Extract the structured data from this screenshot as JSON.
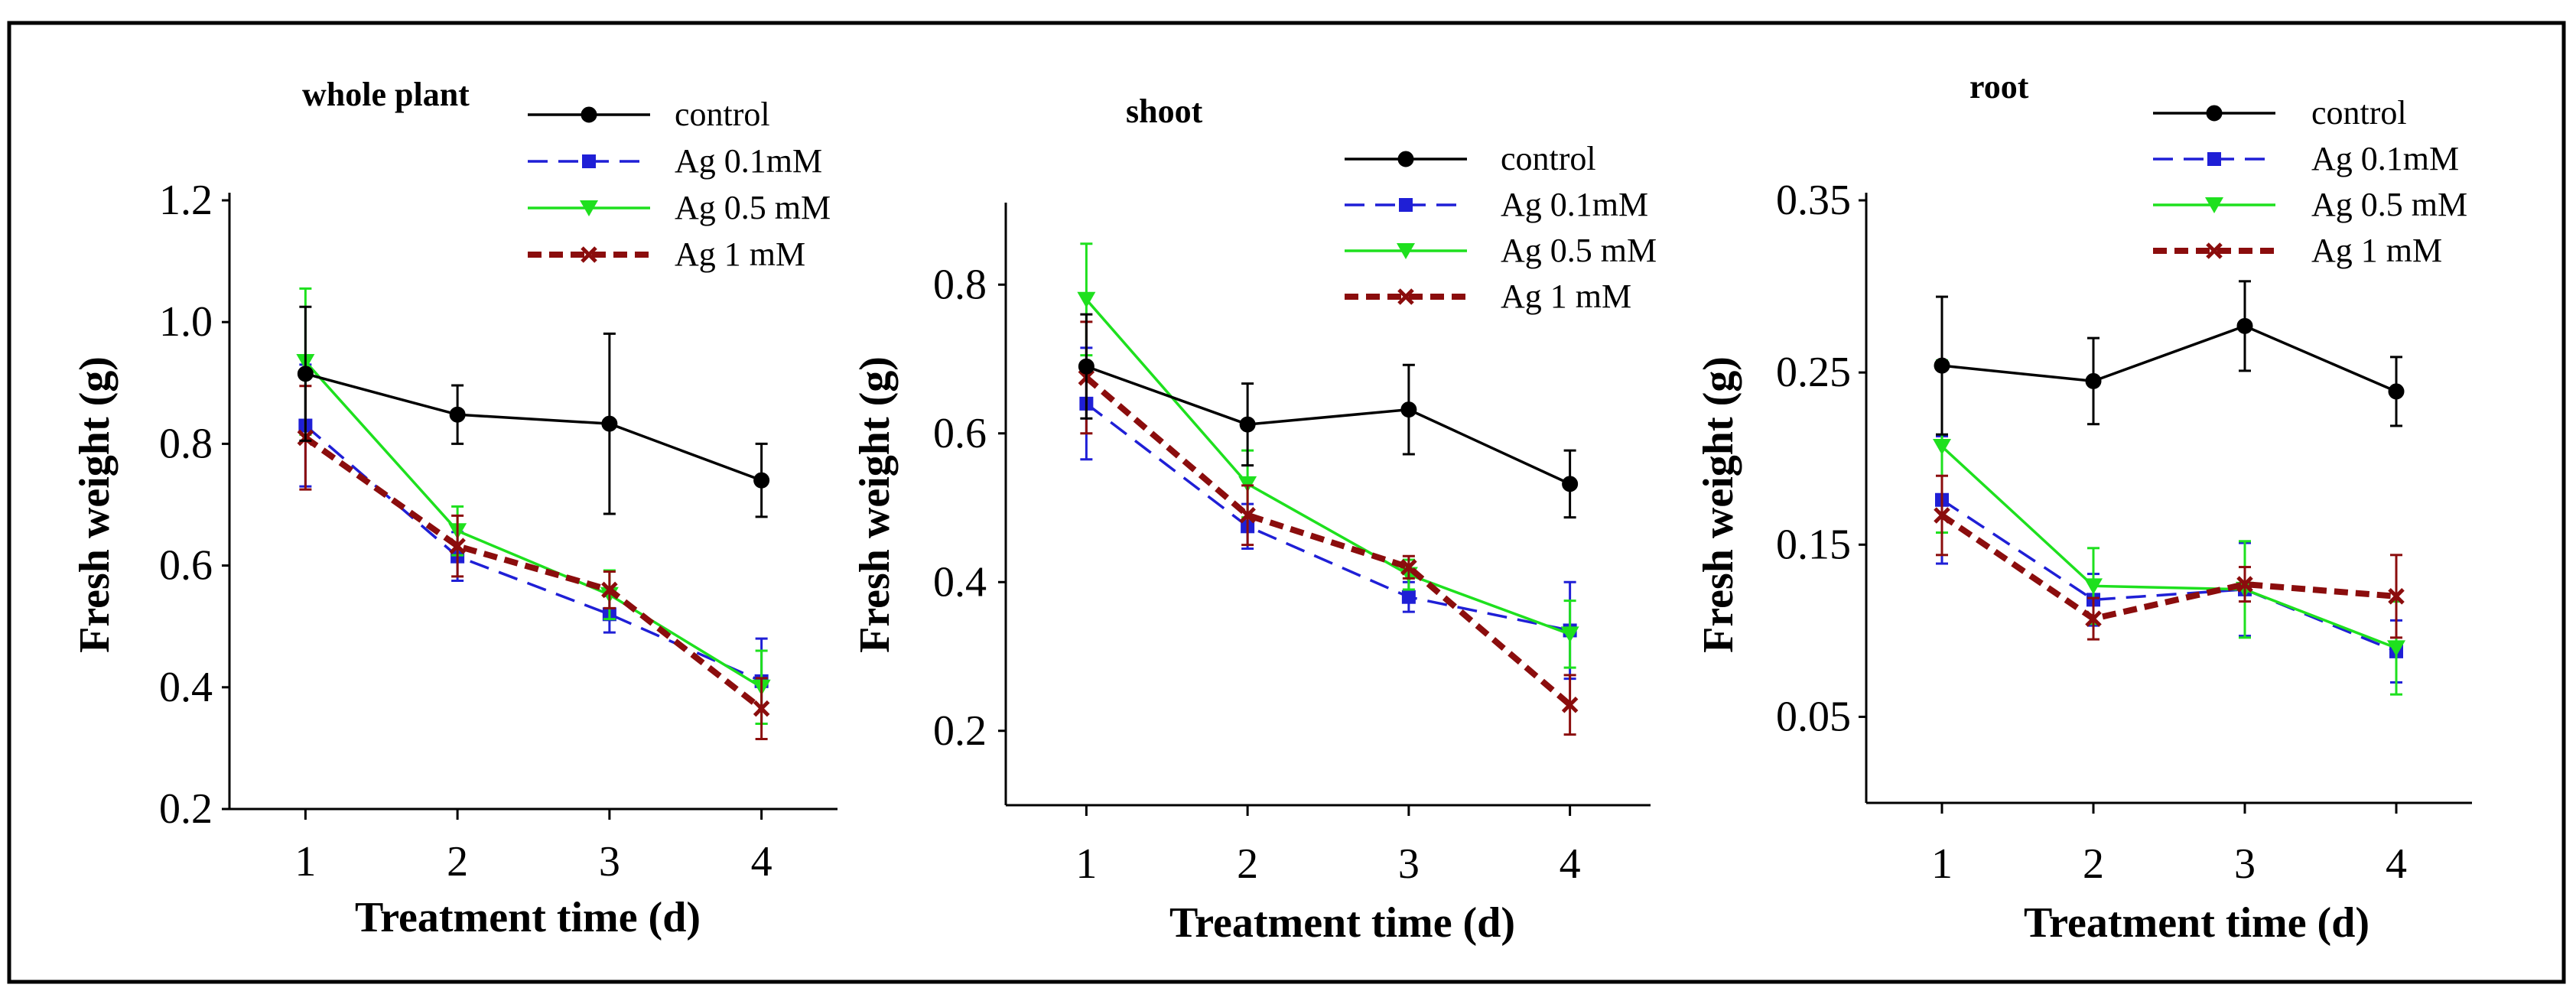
{
  "figure": {
    "panels_count": 3
  },
  "chart_data": [
    {
      "type": "line",
      "title": "whole plant",
      "xlabel": "Treatment time (d)",
      "ylabel": "Fresh weight (g)",
      "x": [
        1,
        2,
        3,
        4
      ],
      "xlim": [
        0.5,
        4.5
      ],
      "ylim": [
        0.2,
        1.2
      ],
      "yticks": [
        0.2,
        0.4,
        0.6,
        0.8,
        1.0,
        1.2
      ],
      "ytick_labels": [
        "0.2",
        "0.4",
        "0.6",
        "0.8",
        "1.0",
        "1.2"
      ],
      "xtick_labels": [
        "1",
        "2",
        "3",
        "4"
      ],
      "legend_position": "top-right",
      "series": [
        {
          "name": "control",
          "color": "#000000",
          "dash": "solid",
          "marker": "circle",
          "values": [
            0.915,
            0.848,
            0.833,
            0.74
          ],
          "errors": [
            0.11,
            0.048,
            0.148,
            0.06
          ]
        },
        {
          "name": "Ag 0.1mM",
          "color": "#1f1fd6",
          "dash": "dashed",
          "marker": "square",
          "values": [
            0.83,
            0.615,
            0.52,
            0.41
          ],
          "errors": [
            0.1,
            0.04,
            0.03,
            0.07
          ]
        },
        {
          "name": "Ag 0.5 mM",
          "color": "#1ee01e",
          "dash": "solid",
          "marker": "triangle",
          "values": [
            0.935,
            0.657,
            0.552,
            0.4
          ],
          "errors": [
            0.12,
            0.04,
            0.04,
            0.06
          ]
        },
        {
          "name": "Ag 1 mM",
          "color": "#8b0d0d",
          "dash": "dotted",
          "marker": "cross",
          "values": [
            0.81,
            0.632,
            0.56,
            0.365
          ],
          "errors": [
            0.085,
            0.05,
            0.03,
            0.05
          ]
        }
      ]
    },
    {
      "type": "line",
      "title": "shoot",
      "xlabel": "Treatment time (d)",
      "ylabel": "Fresh weight (g)",
      "x": [
        1,
        2,
        3,
        4
      ],
      "xlim": [
        0.5,
        4.5
      ],
      "ylim": [
        0.1,
        0.9
      ],
      "yticks": [
        0.2,
        0.4,
        0.6,
        0.8
      ],
      "ytick_labels": [
        "0.2",
        "0.4",
        "0.6",
        "0.8"
      ],
      "xtick_labels": [
        "1",
        "2",
        "3",
        "4"
      ],
      "legend_position": "top-right",
      "series": [
        {
          "name": "control",
          "color": "#000000",
          "dash": "solid",
          "marker": "circle",
          "values": [
            0.69,
            0.612,
            0.632,
            0.532
          ],
          "errors": [
            0.07,
            0.055,
            0.06,
            0.045
          ]
        },
        {
          "name": "Ag 0.1mM",
          "color": "#1f1fd6",
          "dash": "dashed",
          "marker": "square",
          "values": [
            0.64,
            0.475,
            0.38,
            0.335
          ],
          "errors": [
            0.075,
            0.03,
            0.02,
            0.065
          ]
        },
        {
          "name": "Ag 0.5 mM",
          "color": "#1ee01e",
          "dash": "solid",
          "marker": "triangle",
          "values": [
            0.78,
            0.532,
            0.41,
            0.33
          ],
          "errors": [
            0.075,
            0.045,
            0.02,
            0.045
          ]
        },
        {
          "name": "Ag 1 mM",
          "color": "#8b0d0d",
          "dash": "dotted",
          "marker": "cross",
          "values": [
            0.675,
            0.49,
            0.42,
            0.235
          ],
          "errors": [
            0.075,
            0.04,
            0.015,
            0.04
          ]
        }
      ]
    },
    {
      "type": "line",
      "title": "root",
      "xlabel": "Treatment time (d)",
      "ylabel": "Fresh weight (g)",
      "x": [
        1,
        2,
        3,
        4
      ],
      "xlim": [
        0.5,
        4.5
      ],
      "ylim": [
        0.0,
        0.35
      ],
      "yticks": [
        0.05,
        0.15,
        0.25,
        0.35
      ],
      "ytick_labels": [
        "0.05",
        "0.15",
        "0.25",
        "0.35"
      ],
      "xtick_labels": [
        "1",
        "2",
        "3",
        "4"
      ],
      "legend_position": "top-right",
      "series": [
        {
          "name": "control",
          "color": "#000000",
          "dash": "solid",
          "marker": "circle",
          "values": [
            0.254,
            0.245,
            0.277,
            0.239
          ],
          "errors": [
            0.04,
            0.025,
            0.026,
            0.02
          ]
        },
        {
          "name": "Ag 0.1mM",
          "color": "#1f1fd6",
          "dash": "dashed",
          "marker": "square",
          "values": [
            0.176,
            0.118,
            0.124,
            0.088
          ],
          "errors": [
            0.037,
            0.015,
            0.027,
            0.018
          ]
        },
        {
          "name": "Ag 0.5 mM",
          "color": "#1ee01e",
          "dash": "solid",
          "marker": "triangle",
          "values": [
            0.207,
            0.126,
            0.124,
            0.09
          ],
          "errors": [
            0.05,
            0.022,
            0.028,
            0.027
          ]
        },
        {
          "name": "Ag 1 mM",
          "color": "#8b0d0d",
          "dash": "dotted",
          "marker": "cross",
          "values": [
            0.167,
            0.107,
            0.127,
            0.12
          ],
          "errors": [
            0.023,
            0.012,
            0.01,
            0.024
          ]
        }
      ]
    }
  ]
}
